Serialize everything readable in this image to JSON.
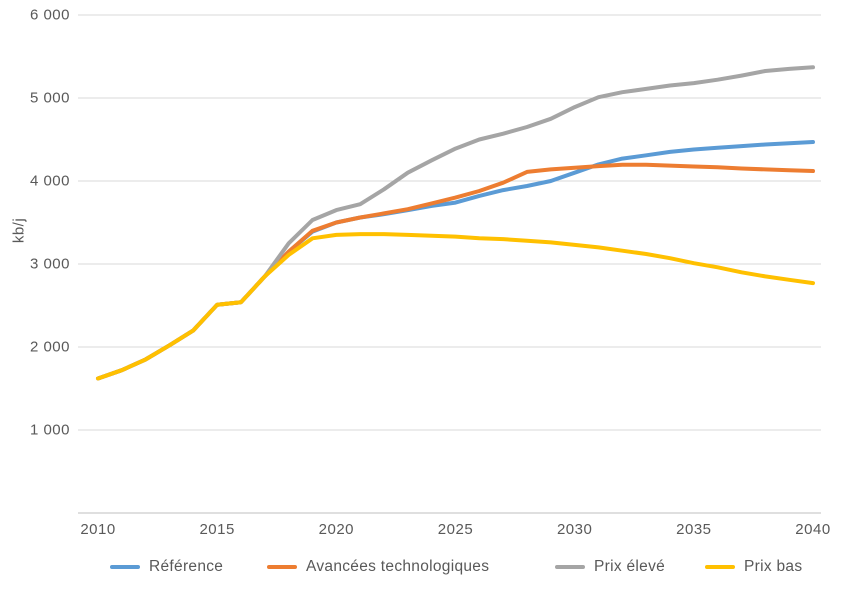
{
  "chart": {
    "y_axis_title": "kb/j",
    "y_ticks": [
      {
        "value": 1000,
        "label": "1 000"
      },
      {
        "value": 2000,
        "label": "2 000"
      },
      {
        "value": 3000,
        "label": "3 000"
      },
      {
        "value": 4000,
        "label": "4 000"
      },
      {
        "value": 5000,
        "label": "5 000"
      },
      {
        "value": 6000,
        "label": "6 000"
      }
    ],
    "x_ticks": [
      {
        "value": 2010,
        "label": "2010"
      },
      {
        "value": 2015,
        "label": "2015"
      },
      {
        "value": 2020,
        "label": "2020"
      },
      {
        "value": 2025,
        "label": "2025"
      },
      {
        "value": 2030,
        "label": "2030"
      },
      {
        "value": 2035,
        "label": "2035"
      },
      {
        "value": 2040,
        "label": "2040"
      }
    ],
    "colors": {
      "gridline": "#D9D9D9",
      "axis_line": "#BFBFBF",
      "text": "#595959"
    }
  },
  "chart_data": {
    "type": "line",
    "title": "",
    "xlabel": "",
    "ylabel": "kb/j",
    "xlim": [
      2010,
      2040
    ],
    "ylim": [
      0,
      6000
    ],
    "grid": true,
    "legend_position": "bottom",
    "x": [
      2010,
      2011,
      2012,
      2013,
      2014,
      2015,
      2016,
      2017,
      2018,
      2019,
      2020,
      2021,
      2022,
      2023,
      2024,
      2025,
      2026,
      2027,
      2028,
      2029,
      2030,
      2031,
      2032,
      2033,
      2034,
      2035,
      2036,
      2037,
      2038,
      2039,
      2040
    ],
    "series": [
      {
        "name": "Référence",
        "color": "#5B9BD5",
        "values": [
          1620,
          1720,
          1850,
          2020,
          2200,
          2510,
          2540,
          2850,
          3150,
          3390,
          3500,
          3560,
          3600,
          3650,
          3700,
          3740,
          3820,
          3890,
          3940,
          4000,
          4100,
          4200,
          4270,
          4310,
          4350,
          4380,
          4400,
          4420,
          4440,
          4455,
          4470
        ]
      },
      {
        "name": "Avancées technologiques",
        "color": "#ED7D31",
        "values": [
          1620,
          1720,
          1850,
          2020,
          2200,
          2510,
          2540,
          2850,
          3150,
          3400,
          3500,
          3560,
          3610,
          3660,
          3730,
          3800,
          3880,
          3980,
          4110,
          4140,
          4160,
          4180,
          4195,
          4195,
          4185,
          4175,
          4165,
          4150,
          4140,
          4130,
          4120
        ]
      },
      {
        "name": "Prix élevé",
        "color": "#A5A5A5",
        "values": [
          1620,
          1720,
          1850,
          2020,
          2200,
          2510,
          2540,
          2850,
          3250,
          3530,
          3650,
          3720,
          3900,
          4100,
          4250,
          4390,
          4500,
          4570,
          4650,
          4750,
          4890,
          5010,
          5070,
          5110,
          5150,
          5180,
          5220,
          5270,
          5325,
          5350,
          5370
        ]
      },
      {
        "name": "Prix bas",
        "color": "#FFC000",
        "values": [
          1620,
          1720,
          1850,
          2020,
          2200,
          2510,
          2540,
          2850,
          3110,
          3310,
          3350,
          3360,
          3360,
          3350,
          3340,
          3330,
          3310,
          3300,
          3280,
          3260,
          3230,
          3200,
          3160,
          3120,
          3070,
          3010,
          2960,
          2900,
          2850,
          2810,
          2770
        ]
      }
    ]
  }
}
